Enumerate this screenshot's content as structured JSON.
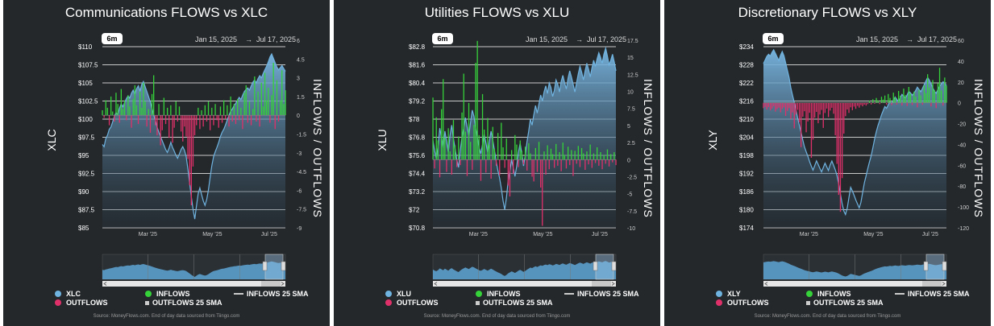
{
  "colors": {
    "price": "#6fb3e0",
    "inflow": "#35d23a",
    "outflow": "#e0306a",
    "panel": "#24282b"
  },
  "charts": [
    {
      "title": "Communications FLOWS vs XLC",
      "range_button": "6m",
      "date_from": "Jan 15, 2025",
      "date_sep": "→",
      "date_to": "Jul 17, 2025",
      "ylabel": "XLC",
      "y2label": "INFLOWS / OUTFLOWS",
      "ticker": "XLC",
      "yticks": [
        "$110",
        "$107.5",
        "$105",
        "$102.5",
        "$100",
        "$97.5",
        "$95",
        "$92.5",
        "$90",
        "$87.5",
        "$85"
      ],
      "y2ticks": [
        "6",
        "4.5",
        "3",
        "1.5",
        "0",
        "-1.5",
        "-3",
        "-4.5",
        "-6",
        "-7.5",
        "-9"
      ],
      "xticks": [
        "Mar '25",
        "May '25",
        "Jul '25"
      ],
      "legend": {
        "ticker": "XLC",
        "inflows": "INFLOWS",
        "outflows": "OUTFLOWS",
        "inflows_sma": "INFLOWS 25 SMA",
        "outflows_sma": "OUTFLOWS 25 SMA"
      },
      "source": "Source: MoneyFlows.com. End of day data sourced from Tiingo.com",
      "chart_data": {
        "type": "area+bar",
        "ylim": [
          85,
          110
        ],
        "y2lim": [
          -9,
          6
        ],
        "price": [
          96.5,
          96.2,
          97.3,
          97.8,
          98.6,
          98.9,
          99.6,
          100.4,
          100.9,
          100.6,
          101.5,
          102.1,
          101.7,
          102.3,
          102.8,
          103.2,
          102.9,
          103.6,
          104.0,
          103.4,
          104.2,
          104.6,
          103.9,
          104.8,
          105.2,
          104.5,
          103.8,
          103.1,
          102.4,
          101.5,
          100.6,
          99.8,
          98.9,
          98.2,
          97.6,
          97.0,
          96.4,
          95.8,
          95.4,
          96.0,
          96.8,
          96.1,
          95.6,
          95.0,
          94.6,
          95.2,
          95.8,
          96.2,
          95.7,
          94.8,
          93.1,
          91.2,
          89.3,
          87.6,
          86.2,
          88.0,
          89.7,
          90.5,
          89.6,
          88.7,
          88.1,
          88.9,
          90.2,
          92.0,
          93.6,
          94.8,
          95.5,
          96.1,
          96.8,
          97.6,
          98.2,
          98.6,
          99.2,
          99.9,
          100.5,
          101.1,
          101.4,
          101.9,
          102.2,
          102.6,
          103.0,
          102.7,
          103.3,
          103.8,
          104.1,
          104.3,
          104.0,
          104.6,
          105.1,
          105.4,
          105.0,
          105.6,
          106.0,
          105.7,
          106.3,
          106.8,
          107.3,
          107.9,
          108.6,
          109.0,
          108.4,
          107.8,
          107.2,
          106.8,
          107.1,
          107.4,
          107.0,
          106.6
        ],
        "flows": [
          0.4,
          -0.2,
          1.2,
          0.6,
          -0.8,
          1.5,
          0.3,
          -0.5,
          1.8,
          0.9,
          -0.6,
          2.1,
          0.5,
          1.2,
          -0.4,
          1.6,
          0.7,
          -1.0,
          1.3,
          2.4,
          0.8,
          -0.7,
          1.9,
          0.6,
          2.6,
          1.1,
          -0.9,
          0.5,
          -1.4,
          1.7,
          3.2,
          -0.8,
          -1.6,
          0.9,
          -2.4,
          -1.2,
          1.4,
          -0.7,
          0.6,
          -1.8,
          0.8,
          -2.2,
          -1.0,
          1.1,
          -0.5,
          0.7,
          -1.3,
          -2.1,
          -0.9,
          -1.7,
          -3.5,
          -5.6,
          -7.2,
          -4.1,
          -1.6,
          -0.8,
          0.6,
          -1.1,
          0.4,
          -0.9,
          0.8,
          -0.5,
          1.1,
          -1.2,
          0.6,
          -0.8,
          0.9,
          -0.4,
          -1.0,
          0.7,
          -0.6,
          1.2,
          -0.3,
          0.8,
          -0.9,
          1.5,
          -0.5,
          0.9,
          -0.7,
          1.3,
          -0.4,
          0.6,
          -1.1,
          1.8,
          2.4,
          -0.6,
          1.1,
          -0.8,
          0.5,
          3.1,
          -0.5,
          1.9,
          -0.9,
          2.6,
          0.7,
          3.4,
          1.2,
          2.2,
          -0.6,
          1.6,
          4.2,
          -1.1,
          2.8,
          -0.5,
          1.2,
          3.6,
          0.9,
          2.0
        ]
      }
    },
    {
      "title": "Utilities FLOWS vs XLU",
      "range_button": "6m",
      "date_from": "Jan 15, 2025",
      "date_sep": "→",
      "date_to": "Jul 17, 2025",
      "ylabel": "XLU",
      "y2label": "INFLOWS / OUTFLOWS",
      "ticker": "XLU",
      "yticks": [
        "$82.8",
        "$81.6",
        "$80.4",
        "$79.2",
        "$78",
        "$76.8",
        "$75.6",
        "$74.4",
        "$73.2",
        "$72",
        "$70.8"
      ],
      "y2ticks": [
        "17.5",
        "15",
        "12.5",
        "10",
        "7.5",
        "5",
        "2.5",
        "0",
        "-2.5",
        "-5",
        "-7.5",
        "-10"
      ],
      "xticks": [
        "Mar '25",
        "May '25",
        "Jul '25"
      ],
      "legend": {
        "ticker": "XLU",
        "inflows": "INFLOWS",
        "outflows": "OUTFLOWS",
        "inflows_sma": "INFLOWS 25 SMA",
        "outflows_sma": "OUTFLOWS 25 SMA"
      },
      "source": "Source: MoneyFlows.com. End of day data sourced from Tiingo.com",
      "chart_data": {
        "type": "area+bar",
        "ylim": [
          70.8,
          82.8
        ],
        "y2lim": [
          -10,
          17.5
        ],
        "price": [
          76.6,
          75.9,
          75.4,
          76.2,
          77.4,
          76.8,
          76.1,
          77.2,
          76.5,
          75.8,
          76.9,
          77.6,
          76.7,
          76.0,
          75.3,
          74.8,
          75.9,
          76.8,
          77.4,
          78.1,
          77.5,
          76.9,
          77.8,
          78.6,
          78.2,
          77.4,
          76.8,
          76.1,
          75.7,
          76.3,
          77.0,
          76.4,
          75.8,
          76.5,
          77.2,
          76.6,
          75.9,
          75.2,
          74.6,
          74.1,
          73.4,
          72.6,
          72.0,
          72.8,
          73.9,
          74.6,
          75.3,
          74.8,
          74.2,
          74.9,
          75.8,
          76.4,
          75.7,
          74.9,
          75.6,
          76.5,
          77.2,
          78.0,
          77.6,
          78.3,
          78.9,
          78.4,
          79.0,
          79.6,
          79.2,
          79.8,
          80.2,
          79.7,
          80.4,
          80.1,
          79.5,
          79.9,
          80.6,
          80.3,
          79.8,
          80.5,
          80.9,
          80.4,
          80.0,
          80.7,
          81.2,
          80.8,
          80.3,
          79.8,
          80.4,
          81.0,
          81.5,
          81.1,
          80.6,
          81.2,
          81.7,
          81.3,
          80.8,
          81.4,
          81.9,
          81.5,
          82.0,
          82.4,
          82.1,
          81.7,
          82.3,
          82.7,
          82.2,
          81.6,
          81.9,
          82.3,
          81.8,
          81.2
        ],
        "flows": [
          9.1,
          -1.3,
          6.2,
          2.8,
          -2.6,
          7.4,
          11.8,
          3.2,
          -1.8,
          4.6,
          1.2,
          -2.2,
          5.8,
          2.1,
          -1.1,
          3.4,
          -0.8,
          6.9,
          12.6,
          4.1,
          -2.4,
          8.3,
          2.6,
          -1.5,
          5.1,
          14.2,
          17.4,
          3.6,
          -3.1,
          9.6,
          4.4,
          -1.9,
          6.1,
          2.2,
          -2.8,
          4.8,
          1.6,
          -0.9,
          3.9,
          -2.3,
          5.4,
          1.8,
          -1.2,
          3.1,
          -3.8,
          -5.4,
          1.4,
          -2.1,
          3.6,
          2.2,
          -1.1,
          2.8,
          1.3,
          -0.7,
          1.9,
          -1.6,
          2.4,
          0.9,
          -2.5,
          -3.2,
          1.7,
          -1.8,
          2.6,
          -4.1,
          -9.7,
          1.2,
          -2.2,
          2.1,
          -1.4,
          1.6,
          0.8,
          -1.2,
          2.3,
          -0.9,
          1.1,
          -1.7,
          2.5,
          0.7,
          -1.3,
          1.9,
          -0.8,
          1.4,
          -2.4,
          1.3,
          -0.6,
          2.0,
          -1.1,
          1.7,
          0.9,
          -1.5,
          1.2,
          -0.7,
          2.2,
          -1.2,
          0.9,
          -0.5,
          1.8,
          -0.9,
          1.1,
          -1.4,
          0.7,
          -0.6,
          1.5,
          -1.0,
          0.8,
          -0.4,
          1.1,
          -0.8
        ]
      }
    },
    {
      "title": "Discretionary FLOWS vs XLY",
      "range_button": "6m",
      "date_from": "Jan 15, 2025",
      "date_sep": "→",
      "date_to": "Jul 17, 2025",
      "ylabel": "XLY",
      "y2label": "INFLOWS / OUTFLOWS",
      "ticker": "XLY",
      "yticks": [
        "$234",
        "$228",
        "$222",
        "$216",
        "$210",
        "$204",
        "$198",
        "$192",
        "$186",
        "$180",
        "$174"
      ],
      "y2ticks": [
        "60",
        "40",
        "20",
        "0",
        "-20",
        "-40",
        "-60",
        "-80",
        "-100",
        "-120"
      ],
      "xticks": [
        "Mar '25",
        "May '25",
        "Jul '25"
      ],
      "legend": {
        "ticker": "XLY",
        "inflows": "INFLOWS",
        "outflows": "OUTFLOWS",
        "inflows_sma": "INFLOWS 25 SMA",
        "outflows_sma": "OUTFLOWS 25 SMA"
      },
      "source": "Source: MoneyFlows.com. End of day data sourced from Tiingo.com",
      "chart_data": {
        "type": "area+bar",
        "ylim": [
          174,
          234
        ],
        "y2lim": [
          -120,
          60
        ],
        "price": [
          228.4,
          229.6,
          230.8,
          231.5,
          230.9,
          232.1,
          233.0,
          231.8,
          230.6,
          229.4,
          231.2,
          232.4,
          231.0,
          228.6,
          226.2,
          223.8,
          220.5,
          217.9,
          215.6,
          213.2,
          210.4,
          207.9,
          205.6,
          203.1,
          200.8,
          199.2,
          197.6,
          195.9,
          194.4,
          193.1,
          194.6,
          196.2,
          195.0,
          193.7,
          192.5,
          194.0,
          195.4,
          194.2,
          193.0,
          194.8,
          196.1,
          194.7,
          193.2,
          191.4,
          188.6,
          185.2,
          182.0,
          179.6,
          178.4,
          180.6,
          184.1,
          187.4,
          186.2,
          184.8,
          183.2,
          181.9,
          180.6,
          182.4,
          185.6,
          188.9,
          191.2,
          193.6,
          195.8,
          197.9,
          200.6,
          203.4,
          205.8,
          207.9,
          209.6,
          211.4,
          212.8,
          214.2,
          213.6,
          214.8,
          215.9,
          215.2,
          216.4,
          217.3,
          216.5,
          215.8,
          217.1,
          218.2,
          217.6,
          216.9,
          218.0,
          219.2,
          218.7,
          217.9,
          218.6,
          219.5,
          220.6,
          219.8,
          219.1,
          220.2,
          221.4,
          222.6,
          223.8,
          222.9,
          221.7,
          220.4,
          219.2,
          218.6,
          219.8,
          220.9,
          221.6,
          222.4,
          221.8,
          221.2
        ],
        "flows": [
          -5.2,
          -3.8,
          -6.4,
          -4.1,
          -7.3,
          -5.6,
          -3.2,
          -8.4,
          -6.1,
          -4.7,
          -9.2,
          -5.9,
          -4.3,
          -12.6,
          -7.8,
          -5.1,
          -15.4,
          -9.3,
          -24.6,
          -11.2,
          -6.8,
          -18.7,
          -42.6,
          -13.4,
          -8.1,
          -28.3,
          -17.9,
          -9.6,
          -52.8,
          -35.4,
          -14.2,
          -8.7,
          -19.6,
          -11.3,
          -6.9,
          -24.1,
          -9.8,
          -5.6,
          -13.7,
          -7.4,
          -4.8,
          -10.5,
          -31.2,
          -58.6,
          -88.4,
          -104.6,
          -72.3,
          -29.6,
          -12.8,
          -6.4,
          -9.7,
          -4.3,
          -7.1,
          -3.6,
          -5.8,
          -2.9,
          -4.6,
          -2.2,
          -3.4,
          -1.8,
          -2.7,
          -1.3,
          2.1,
          -1.6,
          3.4,
          -0.9,
          4.6,
          2.2,
          -1.2,
          5.8,
          3.1,
          6.9,
          -1.7,
          8.4,
          4.6,
          -2.3,
          9.7,
          5.2,
          -1.8,
          11.3,
          6.8,
          -2.6,
          13.6,
          7.4,
          -3.1,
          15.2,
          8.8,
          -2.2,
          10.6,
          5.9,
          -4.3,
          12.4,
          7.1,
          -1.9,
          16.8,
          9.3,
          27.4,
          14.6,
          -3.4,
          21.8,
          12.2,
          -5.1,
          18.6,
          33.6,
          11.8,
          -2.7,
          24.2,
          16.4
        ]
      }
    }
  ]
}
